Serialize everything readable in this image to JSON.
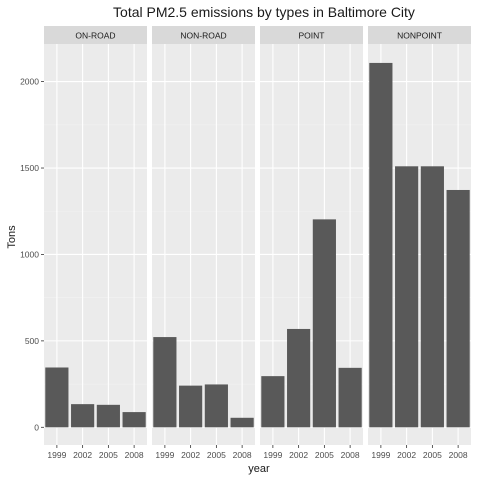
{
  "chart_data": {
    "type": "bar",
    "title": "Total PM2.5 emissions by types in Baltimore City",
    "xlabel": "year",
    "ylabel": "Tons",
    "categories": [
      "1999",
      "2002",
      "2005",
      "2008"
    ],
    "ylim": [
      0,
      2200
    ],
    "yticks": [
      0,
      500,
      1000,
      1500,
      2000
    ],
    "grid": true,
    "facets": [
      {
        "label": "ON-ROAD",
        "values": [
          346,
          134,
          130,
          88
        ]
      },
      {
        "label": "NON-ROAD",
        "values": [
          522,
          241,
          248,
          55
        ]
      },
      {
        "label": "POINT",
        "values": [
          296,
          569,
          1203,
          344
        ]
      },
      {
        "label": "NONPOINT",
        "values": [
          2108,
          1510,
          1510,
          1373
        ]
      }
    ],
    "colors": {
      "bar": "#595959",
      "panel": "#ebebeb",
      "grid_major": "#ffffff",
      "grid_minor": "#f2f2f2",
      "strip": "#d9d9d9"
    }
  }
}
